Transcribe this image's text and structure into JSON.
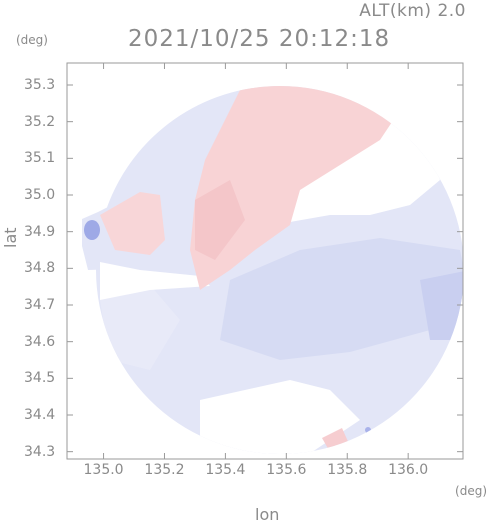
{
  "header": {
    "altitude": "ALT(km) 2.0",
    "datetime": "2021/10/25 20:12:18"
  },
  "axes": {
    "lat_unit": "(deg)",
    "lon_unit": "(deg)",
    "lat_label": "lat",
    "lon_label": "lon",
    "lat_ticks": [
      "35.3",
      "35.2",
      "35.1",
      "35.0",
      "34.9",
      "34.8",
      "34.7",
      "34.6",
      "34.5",
      "34.4",
      "34.3"
    ],
    "lon_ticks": [
      "135.0",
      "135.2",
      "135.4",
      "135.6",
      "135.8",
      "136.0"
    ],
    "lat_range": [
      34.28,
      35.36
    ],
    "lon_range": [
      134.88,
      136.18
    ]
  },
  "colors": {
    "away_pink": "#f8d2d4",
    "toward_blue": "#dde1f5",
    "toward_blue_strong": "#c4cbef",
    "frame": "#9a9a9a"
  }
}
